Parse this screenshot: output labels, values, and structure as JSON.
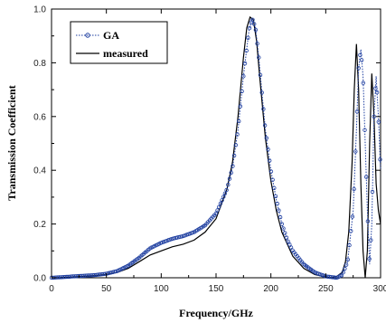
{
  "chart_data": {
    "type": "line",
    "title": "",
    "xlabel": "Frequency/GHz",
    "ylabel": "Transmission Coefficient",
    "xlim": [
      0,
      300
    ],
    "ylim": [
      0.0,
      1.0
    ],
    "x_ticks": [
      0,
      50,
      100,
      150,
      200,
      250,
      300
    ],
    "x_tick_labels": [
      "0",
      "50",
      "100",
      "150",
      "200",
      "250",
      "300"
    ],
    "y_ticks": [
      0.0,
      0.2,
      0.4,
      0.6,
      0.8,
      1.0
    ],
    "y_tick_labels": [
      "0.0",
      "0.2",
      "0.4",
      "0.6",
      "0.8",
      "1.0"
    ],
    "grid": false,
    "legend_position": "top-left",
    "series": [
      {
        "name": "GA",
        "style": "dotted line with open circle markers",
        "color": "#1f3fa0",
        "x": [
          0,
          20,
          40,
          50,
          60,
          70,
          80,
          90,
          100,
          110,
          120,
          130,
          140,
          150,
          160,
          165,
          170,
          175,
          180,
          183,
          186,
          189,
          192,
          195,
          200,
          205,
          210,
          215,
          220,
          230,
          240,
          250,
          260,
          265,
          270,
          275,
          278,
          280,
          282,
          284,
          286,
          288,
          290,
          292,
          294,
          296,
          298,
          300
        ],
        "y": [
          0.0,
          0.005,
          0.01,
          0.015,
          0.025,
          0.045,
          0.075,
          0.11,
          0.13,
          0.145,
          0.155,
          0.17,
          0.195,
          0.24,
          0.33,
          0.41,
          0.55,
          0.75,
          0.92,
          0.965,
          0.93,
          0.82,
          0.68,
          0.55,
          0.4,
          0.29,
          0.2,
          0.14,
          0.1,
          0.05,
          0.02,
          0.005,
          0.0,
          0.01,
          0.06,
          0.25,
          0.55,
          0.78,
          0.85,
          0.75,
          0.5,
          0.25,
          0.05,
          0.2,
          0.6,
          0.75,
          0.6,
          0.4
        ]
      },
      {
        "name": "measured",
        "style": "solid line",
        "color": "#000000",
        "x": [
          0,
          20,
          40,
          50,
          60,
          70,
          80,
          90,
          100,
          110,
          120,
          130,
          140,
          150,
          160,
          165,
          170,
          175,
          178,
          181,
          184,
          187,
          190,
          195,
          200,
          205,
          210,
          220,
          230,
          240,
          250,
          255,
          260,
          265,
          268,
          271,
          274,
          276,
          278,
          280,
          282,
          284,
          286,
          288,
          290,
          292,
          294,
          296,
          298,
          300
        ],
        "y": [
          0.0,
          0.003,
          0.008,
          0.012,
          0.02,
          0.035,
          0.06,
          0.085,
          0.1,
          0.115,
          0.125,
          0.14,
          0.17,
          0.22,
          0.33,
          0.43,
          0.6,
          0.82,
          0.93,
          0.97,
          0.96,
          0.88,
          0.74,
          0.52,
          0.36,
          0.25,
          0.17,
          0.08,
          0.035,
          0.012,
          0.003,
          0.0,
          0.005,
          0.02,
          0.06,
          0.17,
          0.43,
          0.7,
          0.87,
          0.7,
          0.35,
          0.1,
          0.0,
          0.1,
          0.5,
          0.76,
          0.6,
          0.35,
          0.25,
          0.2
        ]
      }
    ]
  }
}
